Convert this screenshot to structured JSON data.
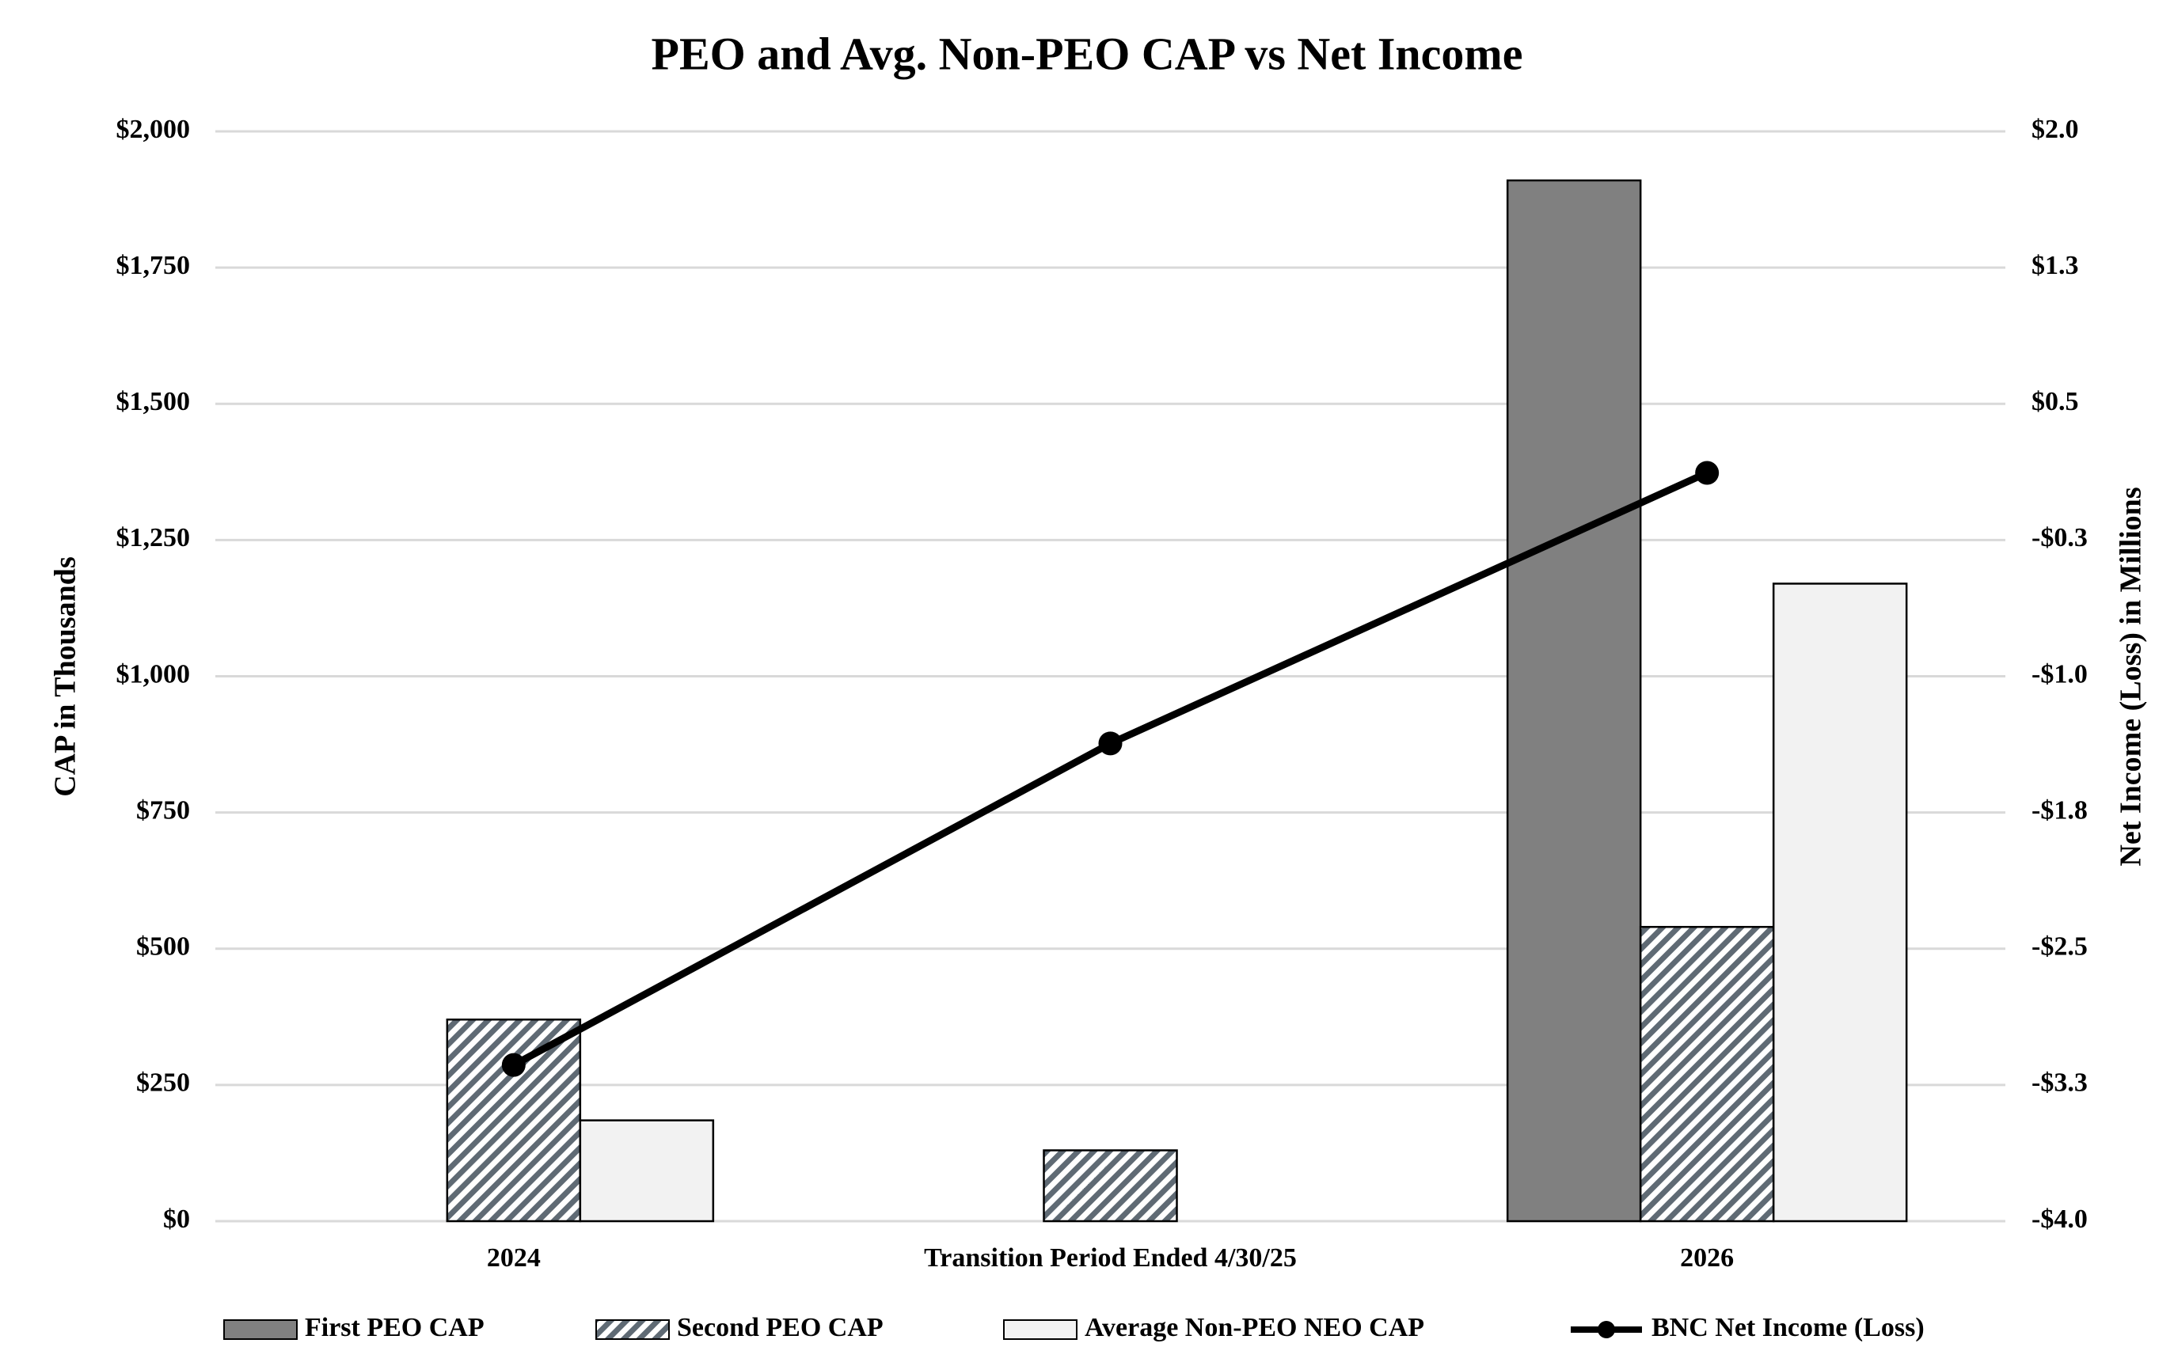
{
  "chart_data": {
    "type": "bar-line",
    "title": "PEO and Avg. Non-PEO CAP vs Net Income",
    "y_label": "CAP in Thousands",
    "y2_label": "Net Income (Loss) in Millions",
    "categories": [
      "2024",
      "Transition Period Ended 4/30/25",
      "2026"
    ],
    "series": [
      {
        "name": "First PEO CAP",
        "type": "bar",
        "color": "#808080",
        "values": [
          null,
          null,
          1910
        ]
      },
      {
        "name": "Second PEO CAP",
        "type": "bar",
        "color": "#5f6a74",
        "fill_pattern": "diagonal-hatch",
        "values": [
          370,
          130,
          540
        ]
      },
      {
        "name": "Average Non-PEO NEO CAP",
        "type": "bar",
        "color": "#f2f2f2",
        "values": [
          185,
          null,
          1170
        ]
      },
      {
        "name": "BNC Net Income (Loss)",
        "type": "line",
        "axis": "y2",
        "color": "#000000",
        "values": [
          -3.14,
          -1.37,
          0.12
        ]
      }
    ],
    "ylim": [
      0,
      2000
    ],
    "yticks": [
      {
        "value": 0,
        "label": "$0"
      },
      {
        "value": 250,
        "label": "$250"
      },
      {
        "value": 500,
        "label": "$500"
      },
      {
        "value": 750,
        "label": "$750"
      },
      {
        "value": 1000,
        "label": "$1,000"
      },
      {
        "value": 1250,
        "label": "$1,250"
      },
      {
        "value": 1500,
        "label": "$1,500"
      },
      {
        "value": 1750,
        "label": "$1,750"
      },
      {
        "value": 2000,
        "label": "$2,000"
      }
    ],
    "y2lim": [
      -4,
      2
    ],
    "y2ticks": [
      {
        "value": -4,
        "label": "-$4.0"
      },
      {
        "value": -3.25,
        "label": "-$3.3"
      },
      {
        "value": -2.5,
        "label": "-$2.5"
      },
      {
        "value": -1.75,
        "label": "-$1.8"
      },
      {
        "value": -1,
        "label": "-$1.0"
      },
      {
        "value": -0.25,
        "label": "-$0.3"
      },
      {
        "value": 0.5,
        "label": "$0.5"
      },
      {
        "value": 1.25,
        "label": "$1.3"
      },
      {
        "value": 2,
        "label": "$2.0"
      }
    ],
    "grid": true,
    "legend": "bottom"
  }
}
